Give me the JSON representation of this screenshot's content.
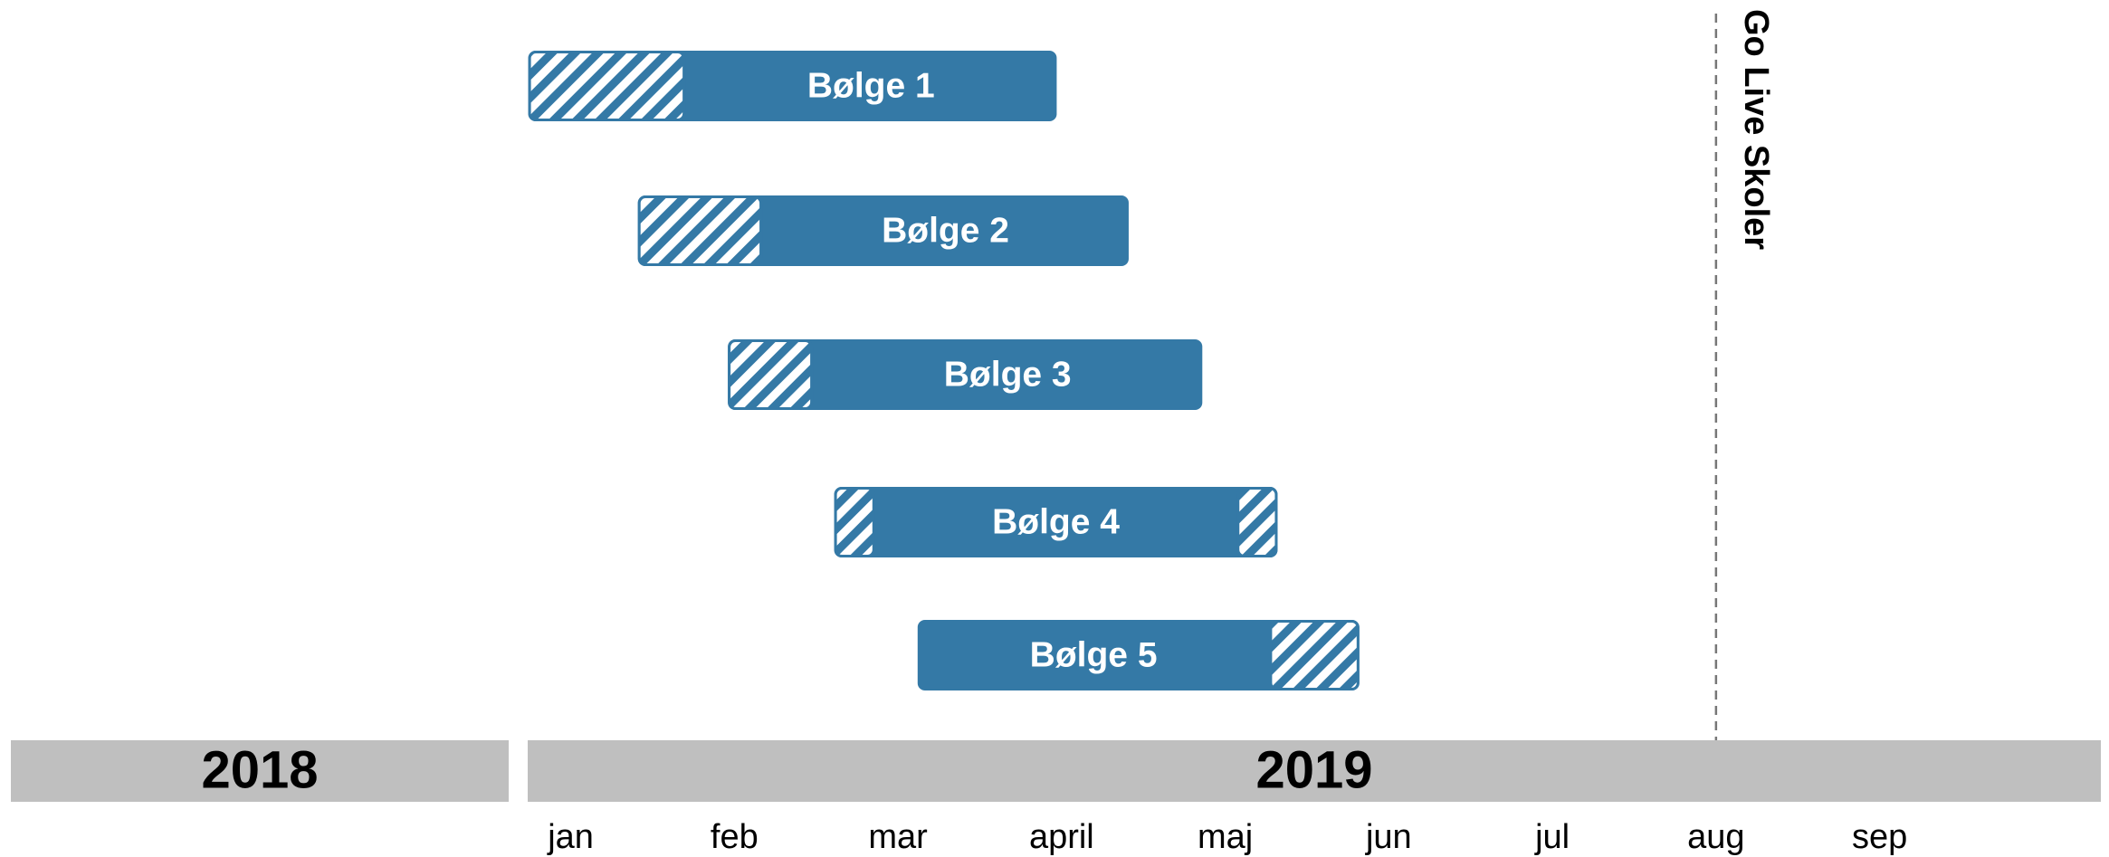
{
  "chart_data": {
    "type": "gantt",
    "categories": [
      "jan",
      "feb",
      "mar",
      "april",
      "maj",
      "jun",
      "jul",
      "aug",
      "sep"
    ],
    "years": [
      "2018",
      "2019"
    ],
    "color": "#3479a6",
    "tasks": [
      {
        "name": "Bølge 1",
        "start": -0.26,
        "end": 2.97,
        "hatch": [
          [
            -0.26,
            0.7
          ]
        ]
      },
      {
        "name": "Bølge 2",
        "start": 0.41,
        "end": 3.41,
        "hatch": [
          [
            0.41,
            1.17
          ]
        ]
      },
      {
        "name": "Bølge 3",
        "start": 0.96,
        "end": 3.86,
        "hatch": [
          [
            0.96,
            1.48
          ]
        ]
      },
      {
        "name": "Bølge 4",
        "start": 1.61,
        "end": 4.32,
        "hatch": [
          [
            1.61,
            1.86
          ],
          [
            4.07,
            4.32
          ]
        ]
      },
      {
        "name": "Bølge 5",
        "start": 2.12,
        "end": 4.82,
        "hatch": [
          [
            4.27,
            4.82
          ]
        ]
      }
    ],
    "milestone": {
      "label": "Go Live Skoler",
      "value": 7.0
    }
  }
}
